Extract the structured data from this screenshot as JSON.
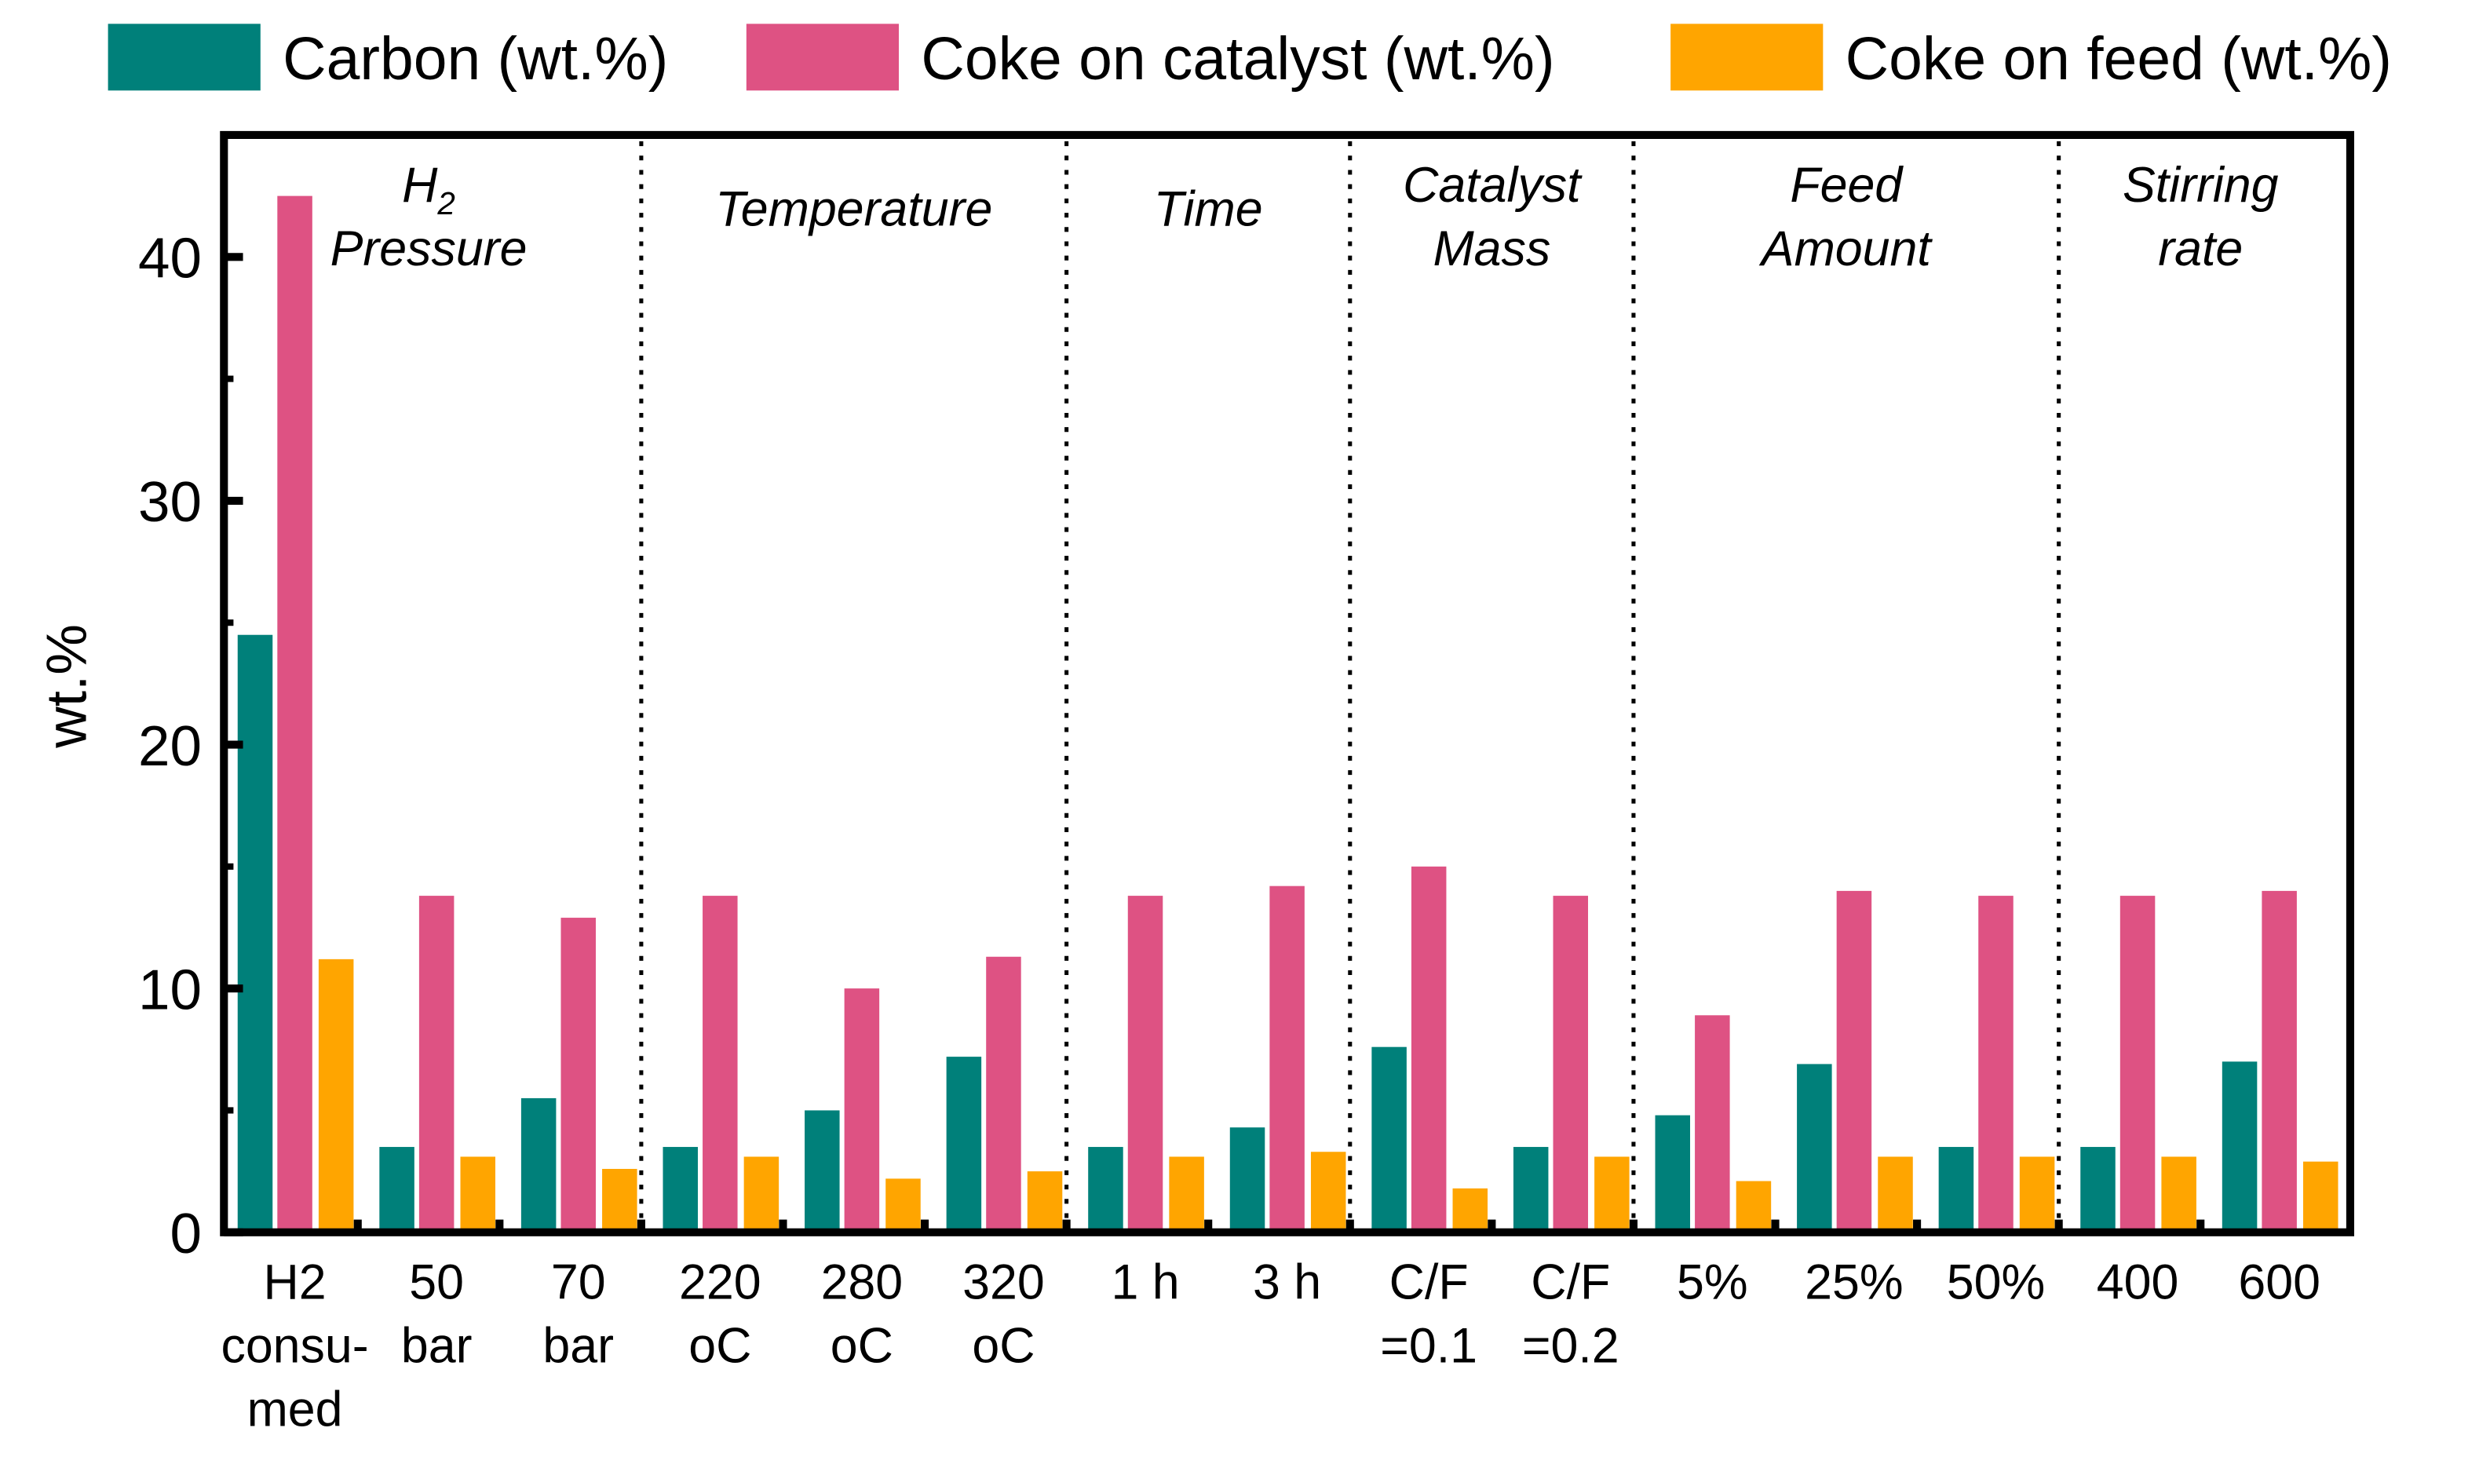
{
  "chart_data": {
    "type": "bar",
    "title": "",
    "xlabel": "",
    "ylabel": "wt.%",
    "ylim": [
      0,
      45
    ],
    "yticks": [
      0,
      10,
      20,
      30,
      40
    ],
    "grid": false,
    "legend_position": "top",
    "categories": [
      [
        "H2",
        "consu-",
        "med"
      ],
      [
        "50",
        "bar"
      ],
      [
        "70",
        "bar"
      ],
      [
        "220",
        "oC"
      ],
      [
        "280",
        "oC"
      ],
      [
        "320",
        "oC"
      ],
      [
        "1 h"
      ],
      [
        "3 h"
      ],
      [
        "C/F",
        "=0.1"
      ],
      [
        "C/F",
        "=0.2"
      ],
      [
        "5%"
      ],
      [
        "25%"
      ],
      [
        "50%"
      ],
      [
        "400"
      ],
      [
        "600"
      ]
    ],
    "sections": [
      {
        "label_lines": [
          "H2",
          "Pressure"
        ],
        "subscript": "2",
        "start": 0,
        "end": 3
      },
      {
        "label_lines": [
          "Temperature"
        ],
        "start": 3,
        "end": 6
      },
      {
        "label_lines": [
          "Time"
        ],
        "start": 6,
        "end": 8
      },
      {
        "label_lines": [
          "Catalyst",
          "Mass"
        ],
        "start": 8,
        "end": 10
      },
      {
        "label_lines": [
          "Feed",
          "Amount"
        ],
        "start": 10,
        "end": 13
      },
      {
        "label_lines": [
          "Stirring",
          "rate"
        ],
        "start": 13,
        "end": 15
      }
    ],
    "series": [
      {
        "name": "Carbon (wt.%)",
        "color": "#00807a",
        "values": [
          24.5,
          3.5,
          5.5,
          3.5,
          5.0,
          7.2,
          3.5,
          4.3,
          7.6,
          3.5,
          4.8,
          6.9,
          3.5,
          3.5,
          7.0
        ]
      },
      {
        "name": "Coke on catalyst (wt.%)",
        "color": "#de5283",
        "values": [
          42.5,
          13.8,
          12.9,
          13.8,
          10.0,
          11.3,
          13.8,
          14.2,
          15.0,
          13.8,
          8.9,
          14.0,
          13.8,
          13.8,
          14.0
        ]
      },
      {
        "name": "Coke on feed (wt.%)",
        "color": "#ffa500",
        "values": [
          11.2,
          3.1,
          2.6,
          3.1,
          2.2,
          2.5,
          3.1,
          3.3,
          1.8,
          3.1,
          2.1,
          3.1,
          3.1,
          3.1,
          2.9
        ]
      }
    ]
  }
}
